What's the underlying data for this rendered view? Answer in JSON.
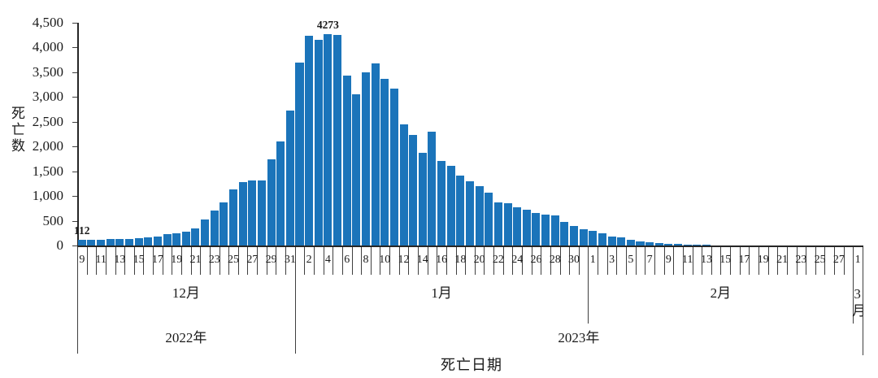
{
  "chart_data": {
    "type": "bar",
    "ylabel": "死亡数",
    "xlabel": "死亡日期",
    "ylim": [
      0,
      4500
    ],
    "ytick_step": 500,
    "y_tick_labels": [
      "0",
      "500",
      "1,000",
      "1,500",
      "2,000",
      "2,500",
      "3,000",
      "3,500",
      "4,000",
      "4,500"
    ],
    "grid": false,
    "legend": "none",
    "bar_color": "#1B74BA",
    "axis_color": "#262626",
    "tick_color": "#3f3f3f",
    "text_color": "#1a1a1a",
    "categories": [
      9,
      10,
      11,
      12,
      13,
      14,
      15,
      16,
      17,
      18,
      19,
      20,
      21,
      22,
      23,
      24,
      25,
      26,
      27,
      28,
      29,
      30,
      31,
      1,
      2,
      3,
      4,
      5,
      6,
      7,
      8,
      9,
      10,
      11,
      12,
      13,
      14,
      15,
      16,
      17,
      18,
      19,
      20,
      21,
      22,
      23,
      24,
      25,
      26,
      27,
      28,
      29,
      30,
      31,
      1,
      2,
      3,
      4,
      5,
      6,
      7,
      8,
      9,
      10,
      11,
      12,
      13,
      14,
      15,
      16,
      17,
      18,
      19,
      20,
      21,
      22,
      23,
      24,
      25,
      26,
      27,
      28,
      1
    ],
    "values": [
      112,
      117,
      120,
      128,
      130,
      135,
      150,
      164,
      175,
      225,
      240,
      278,
      345,
      520,
      708,
      872,
      1134,
      1281,
      1313,
      1313,
      1733,
      2100,
      2720,
      3700,
      4230,
      4160,
      4273,
      4250,
      3430,
      3060,
      3490,
      3680,
      3370,
      3170,
      2455,
      2230,
      1880,
      2300,
      1700,
      1615,
      1405,
      1300,
      1205,
      1065,
      872,
      860,
      775,
      715,
      665,
      628,
      608,
      478,
      392,
      322,
      290,
      248,
      185,
      158,
      122,
      85,
      68,
      55,
      40,
      25,
      15,
      12,
      10,
      8,
      7,
      6,
      6,
      5,
      5,
      4,
      4,
      3,
      3,
      3,
      2,
      2,
      2,
      2,
      0
    ],
    "label_every": 2,
    "month_groups": [
      {
        "label": "12月",
        "start": 0,
        "count": 23,
        "vertical": false
      },
      {
        "label": "1月",
        "start": 23,
        "count": 31,
        "vertical": false
      },
      {
        "label": "2月",
        "start": 54,
        "count": 28,
        "vertical": false
      },
      {
        "label": "3月",
        "start": 82,
        "count": 1,
        "vertical": true
      }
    ],
    "year_groups": [
      {
        "label": "2022年",
        "start": 0,
        "count": 23
      },
      {
        "label": "2023年",
        "start": 23,
        "count": 60
      }
    ],
    "annotations": [
      {
        "index": 0,
        "text": "112"
      },
      {
        "index": 26,
        "text": "4273"
      }
    ]
  }
}
